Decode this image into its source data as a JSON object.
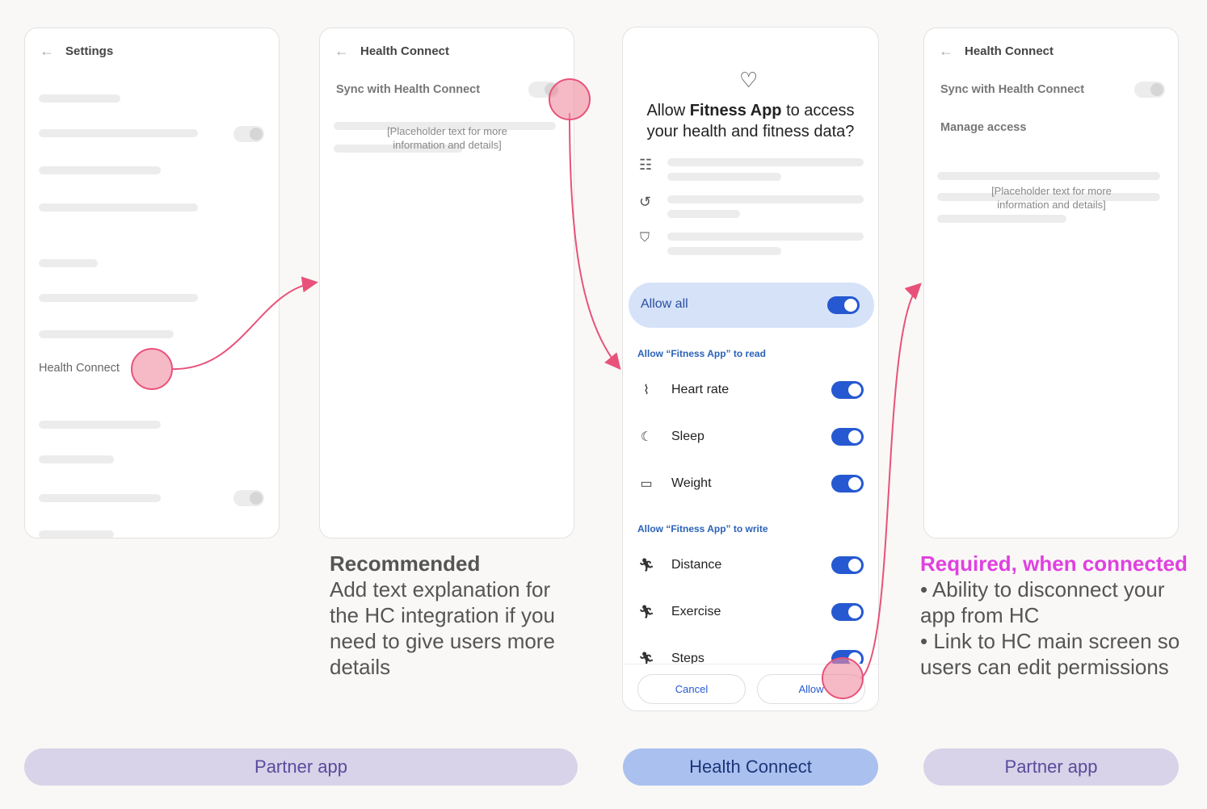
{
  "screen1": {
    "header": "Settings",
    "item": "Health Connect"
  },
  "screen2": {
    "header": "Health Connect",
    "sync_label": "Sync with Health Connect",
    "placeholder": "[Placeholder text for more information and details]"
  },
  "screen3": {
    "title_pre": "Allow ",
    "title_app": "Fitness App",
    "title_post": " to access your health and fitness data?",
    "allow_all": "Allow all",
    "read_section": "Allow “Fitness App” to read",
    "read_items": [
      {
        "label": "Heart rate",
        "icon": "heart-rate-icon",
        "on": true
      },
      {
        "label": "Sleep",
        "icon": "sleep-icon",
        "on": true
      },
      {
        "label": "Weight",
        "icon": "weight-scale-icon",
        "on": true
      }
    ],
    "write_section": "Allow “Fitness App” to write",
    "write_items": [
      {
        "label": "Distance",
        "icon": "run-icon",
        "on": true
      },
      {
        "label": "Exercise",
        "icon": "run-icon",
        "on": true
      },
      {
        "label": "Steps",
        "icon": "run-icon",
        "on": true
      }
    ],
    "cancel": "Cancel",
    "allow": "Allow",
    "accent": "#2659d1"
  },
  "screen4": {
    "header": "Health Connect",
    "sync_label": "Sync with Health Connect",
    "manage": "Manage access",
    "placeholder": "[Placeholder text for more information and details]"
  },
  "notes": {
    "recommended_title": "Recommended",
    "recommended_body": "Add text explanation for the HC integration if you need to give users more details",
    "required_title": "Required, when connected",
    "required_line1": "• Ability to disconnect your app from HC",
    "required_line2": "• Link to HC main screen so users can edit permissions",
    "required_color": "#e040e0"
  },
  "labels": {
    "partner_left": "Partner app",
    "health_connect": "Health Connect",
    "partner_right": "Partner app"
  }
}
